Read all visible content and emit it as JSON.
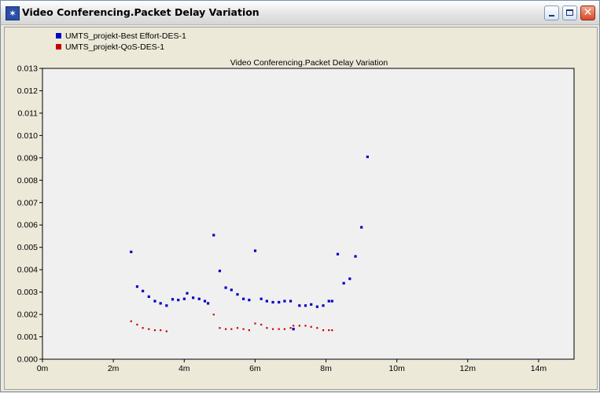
{
  "window": {
    "title": "Video Conferencing.Packet Delay Variation",
    "app_icon": "opnet-star-icon",
    "controls": {
      "minimize": "minimize-icon",
      "maximize": "maximize-icon",
      "close": "close-icon"
    }
  },
  "chart_data": {
    "type": "scatter",
    "title": "Video Conferencing.Packet Delay Variation",
    "xlabel": "",
    "ylabel": "",
    "xlim": [
      0,
      15
    ],
    "ylim": [
      0,
      0.013
    ],
    "x_ticks": [
      0,
      2,
      4,
      6,
      8,
      10,
      12,
      14
    ],
    "x_tick_labels": [
      "0m",
      "2m",
      "4m",
      "6m",
      "8m",
      "10m",
      "12m",
      "14m"
    ],
    "y_ticks": [
      0.0,
      0.001,
      0.002,
      0.003,
      0.004,
      0.005,
      0.006,
      0.007,
      0.008,
      0.009,
      0.01,
      0.011,
      0.012,
      0.013
    ],
    "y_tick_labels": [
      "0.000",
      "0.001",
      "0.002",
      "0.003",
      "0.004",
      "0.005",
      "0.006",
      "0.007",
      "0.008",
      "0.009",
      "0.010",
      "0.011",
      "0.012",
      "0.013"
    ],
    "grid": false,
    "legend_position": "top-left",
    "series": [
      {
        "name": "UMTS_projekt-Best Effort-DES-1",
        "color": "#0000c8",
        "marker": "square",
        "points": [
          [
            2.5,
            0.0048
          ],
          [
            2.67,
            0.00325
          ],
          [
            2.83,
            0.00305
          ],
          [
            3.0,
            0.0028
          ],
          [
            3.17,
            0.0026
          ],
          [
            3.33,
            0.0025
          ],
          [
            3.5,
            0.0024
          ],
          [
            3.67,
            0.00268
          ],
          [
            3.83,
            0.00265
          ],
          [
            4.0,
            0.0027
          ],
          [
            4.08,
            0.00295
          ],
          [
            4.25,
            0.00275
          ],
          [
            4.42,
            0.0027
          ],
          [
            4.58,
            0.0026
          ],
          [
            4.67,
            0.0025
          ],
          [
            4.83,
            0.00555
          ],
          [
            5.0,
            0.00395
          ],
          [
            5.17,
            0.0032
          ],
          [
            5.33,
            0.0031
          ],
          [
            5.5,
            0.0029
          ],
          [
            5.67,
            0.0027
          ],
          [
            5.83,
            0.00265
          ],
          [
            6.0,
            0.00485
          ],
          [
            6.17,
            0.0027
          ],
          [
            6.33,
            0.0026
          ],
          [
            6.5,
            0.00255
          ],
          [
            6.67,
            0.00255
          ],
          [
            6.83,
            0.0026
          ],
          [
            7.0,
            0.0026
          ],
          [
            7.08,
            0.00135
          ],
          [
            7.25,
            0.0024
          ],
          [
            7.42,
            0.0024
          ],
          [
            7.58,
            0.00245
          ],
          [
            7.75,
            0.00235
          ],
          [
            7.92,
            0.0024
          ],
          [
            8.08,
            0.0026
          ],
          [
            8.17,
            0.0026
          ],
          [
            8.33,
            0.0047
          ],
          [
            8.5,
            0.0034
          ],
          [
            8.67,
            0.0036
          ],
          [
            8.83,
            0.0046
          ],
          [
            9.0,
            0.0059
          ],
          [
            9.17,
            0.00905
          ]
        ]
      },
      {
        "name": "UMTS_projekt-QoS-DES-1",
        "color": "#c80000",
        "marker": "dot",
        "points": [
          [
            2.5,
            0.0017
          ],
          [
            2.67,
            0.00155
          ],
          [
            2.83,
            0.0014
          ],
          [
            3.0,
            0.00135
          ],
          [
            3.17,
            0.0013
          ],
          [
            3.33,
            0.0013
          ],
          [
            3.5,
            0.00125
          ],
          [
            4.83,
            0.002
          ],
          [
            5.0,
            0.0014
          ],
          [
            5.17,
            0.00135
          ],
          [
            5.33,
            0.00135
          ],
          [
            5.5,
            0.0014
          ],
          [
            5.67,
            0.00135
          ],
          [
            5.83,
            0.0013
          ],
          [
            6.0,
            0.0016
          ],
          [
            6.17,
            0.00155
          ],
          [
            6.33,
            0.0014
          ],
          [
            6.5,
            0.00135
          ],
          [
            6.67,
            0.00135
          ],
          [
            6.83,
            0.00135
          ],
          [
            7.0,
            0.0014
          ],
          [
            7.08,
            0.0015
          ],
          [
            7.25,
            0.0015
          ],
          [
            7.42,
            0.0015
          ],
          [
            7.58,
            0.00145
          ],
          [
            7.75,
            0.0014
          ],
          [
            7.92,
            0.0013
          ],
          [
            8.08,
            0.0013
          ],
          [
            8.17,
            0.0013
          ]
        ]
      }
    ]
  }
}
